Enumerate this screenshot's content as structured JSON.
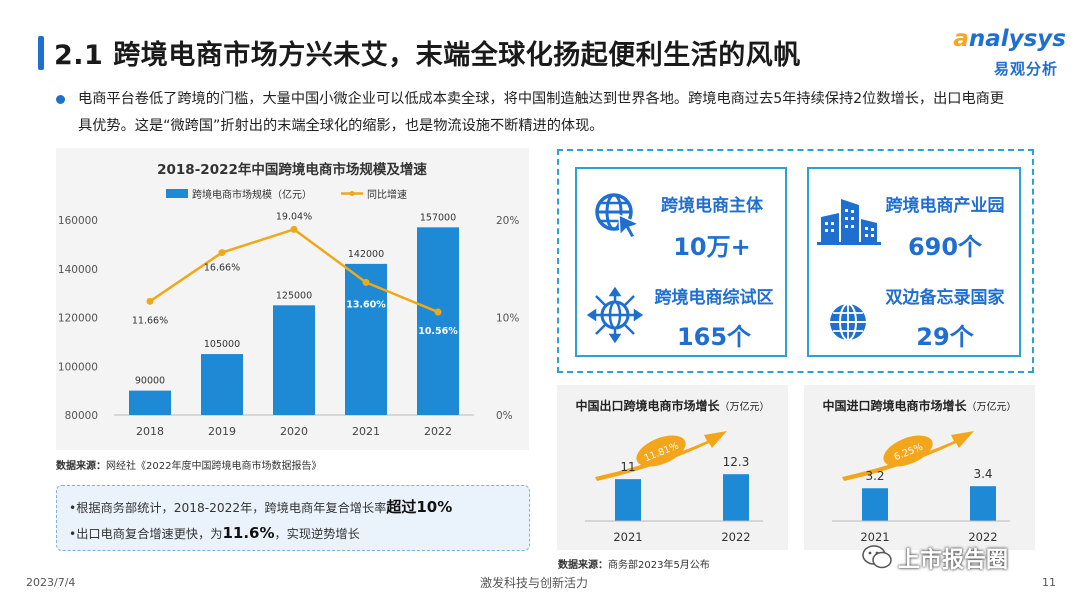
{
  "header": {
    "title": "2.1 跨境电商市场方兴未艾，末端全球化扬起便利生活的风帆",
    "logo_top_rest": "nalysys",
    "logo_bottom": "易观分析"
  },
  "intro": "电商平台卷低了跨境的门槛，大量中国小微企业可以低成本卖全球，将中国制造触达到世界各地。跨境电商过去5年持续保持2位数增长，出口电商更具优势。这是“微跨国”折射出的末端全球化的缩影，也是物流设施不断精进的体现。",
  "colors": {
    "accent": "#1f6fd1",
    "bar": "#1e8ad6",
    "line": "#f0a818",
    "teal": "#2aa2d6"
  },
  "chart_data": [
    {
      "type": "bar",
      "title": "2018-2022年中国跨境电商市场规模及增速",
      "categories": [
        "2018",
        "2019",
        "2020",
        "2021",
        "2022"
      ],
      "series": [
        {
          "name": "跨境电商市场规模（亿元）",
          "type": "bar",
          "axis": "left",
          "values": [
            90000,
            105000,
            125000,
            142000,
            157000
          ]
        },
        {
          "name": "同比增速",
          "type": "line",
          "axis": "right",
          "values": [
            11.66,
            16.66,
            19.04,
            13.6,
            10.56
          ]
        }
      ],
      "value_labels": [
        "90000",
        "105000",
        "125000",
        "142000",
        "157000"
      ],
      "rate_labels": [
        "11.66%",
        "16.66%",
        "19.04%",
        "13.60%",
        "10.56%"
      ],
      "y_left_ticks": [
        "160000",
        "140000",
        "120000",
        "100000",
        "80000"
      ],
      "y_right_ticks": [
        "20%",
        "10%",
        "0%"
      ],
      "ylim_left": [
        80000,
        160000
      ],
      "ylim_right": [
        0,
        20
      ],
      "legend": "top"
    },
    {
      "type": "bar",
      "title": "中国出口跨境电商市场增长",
      "unit": "（万亿元）",
      "categories": [
        "2021",
        "2022"
      ],
      "values": [
        11,
        12.3
      ],
      "value_labels": [
        "11",
        "12.3"
      ],
      "growth_label": "11.81%"
    },
    {
      "type": "bar",
      "title": "中国进口跨境电商市场增长",
      "unit": "（万亿元）",
      "categories": [
        "2021",
        "2022"
      ],
      "values": [
        3.2,
        3.4
      ],
      "value_labels": [
        "3.2",
        "3.4"
      ],
      "growth_label": "6.25%"
    }
  ],
  "source1": {
    "label": "数据来源：",
    "text": "网经社《2022年度中国跨境电商市场数据报告》"
  },
  "summary": {
    "line1_pre": "•根据商务部统计，2018-2022年，跨境电商年复合增长率",
    "line1_bold": "超过10%",
    "line2_pre": "•出口电商复合增速更快，为",
    "line2_bold": "11.6%",
    "line2_post": "，实现逆势增长"
  },
  "stats": [
    {
      "title": "跨境电商主体",
      "value": "10万+",
      "icon": "globe-cursor-icon"
    },
    {
      "title": "跨境电商产业园",
      "value": "690个",
      "icon": "buildings-icon"
    },
    {
      "title": "跨境电商综试区",
      "value": "165个",
      "icon": "globe-network-icon"
    },
    {
      "title": "双边备忘录国家",
      "value": "29个",
      "icon": "globe-icon"
    }
  ],
  "source2": {
    "label": "数据来源：",
    "text": "商务部2023年5月公布"
  },
  "footer": {
    "date": "2023/7/4",
    "center": "激发科技与创新活力",
    "page": "11"
  },
  "watermark": "上市报告圈"
}
